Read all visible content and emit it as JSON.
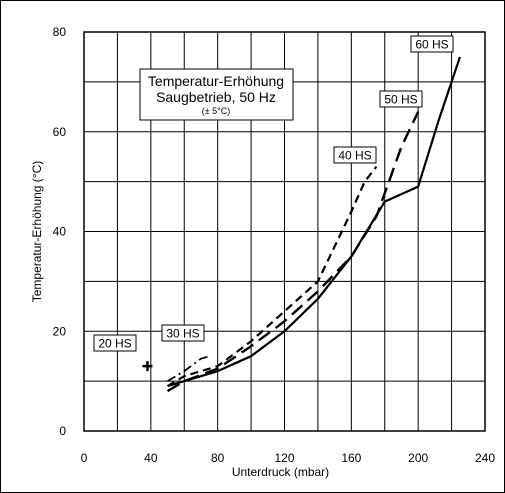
{
  "chart_data": {
    "type": "line",
    "title_box": {
      "line1": "Temperatur-Erhöhung",
      "line2": "Saugbetrieb, 50 Hz",
      "note": "(± 5°C)"
    },
    "xlabel": "Unterdruck (mbar)",
    "ylabel": "Temperatur-Erhöhung (°C)",
    "xlim": [
      0,
      240
    ],
    "ylim": [
      0,
      80
    ],
    "xticks": [
      0,
      40,
      80,
      120,
      160,
      200,
      240
    ],
    "yticks": [
      0,
      20,
      40,
      60,
      80
    ],
    "grid": true,
    "series": [
      {
        "name": "60 HS",
        "dash": "solid",
        "x": [
          50,
          60,
          80,
          100,
          120,
          140,
          160,
          180,
          200,
          212,
          225
        ],
        "y": [
          9,
          10,
          12,
          15,
          20,
          26.5,
          35,
          46,
          49,
          62,
          75
        ]
      },
      {
        "name": "50 HS",
        "dash": "longdash",
        "x": [
          50,
          60,
          80,
          100,
          120,
          140,
          160,
          175,
          190,
          200
        ],
        "y": [
          8,
          10,
          12.5,
          17,
          22,
          28,
          35,
          43,
          57,
          64
        ]
      },
      {
        "name": "40 HS",
        "dash": "shortdash",
        "x": [
          50,
          60,
          80,
          100,
          120,
          140,
          150,
          160,
          168,
          175
        ],
        "y": [
          9,
          11,
          13,
          18,
          24,
          30,
          37,
          44,
          50,
          53
        ]
      },
      {
        "name": "30 HS",
        "dash": "dashdot",
        "x": [
          50,
          60,
          70,
          75
        ],
        "y": [
          10,
          12,
          14.5,
          15
        ]
      },
      {
        "name": "20 HS",
        "marker": "plus",
        "x": [
          38
        ],
        "y": [
          13
        ]
      }
    ]
  }
}
